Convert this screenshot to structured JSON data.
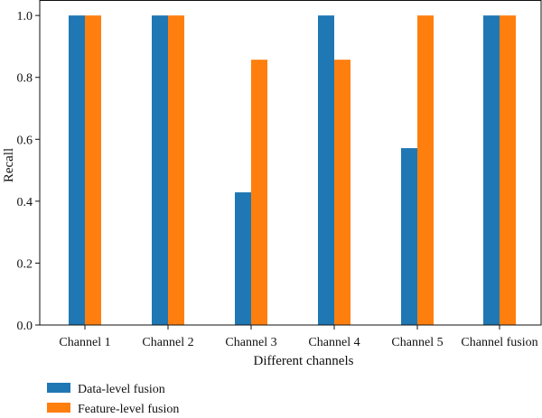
{
  "chart_data": {
    "type": "bar",
    "categories": [
      "Channel 1",
      "Channel 2",
      "Channel 3",
      "Channel 4",
      "Channel 5",
      "Channel fusion"
    ],
    "series": [
      {
        "name": "Data-level fusion",
        "color": "#1f77b4",
        "values": [
          1.0,
          1.0,
          0.4286,
          1.0,
          0.5714,
          1.0
        ]
      },
      {
        "name": "Feature-level fusion",
        "color": "#ff7f0e",
        "values": [
          1.0,
          1.0,
          0.8571,
          0.8571,
          1.0,
          1.0
        ]
      }
    ],
    "title": "",
    "xlabel": "Different channels",
    "ylabel": "Recall",
    "ylim": [
      0.0,
      1.05
    ],
    "yticks": [
      "0.0",
      "0.2",
      "0.4",
      "0.6",
      "0.8",
      "1.0"
    ],
    "grid": false,
    "legend_position": "bottom-left"
  }
}
